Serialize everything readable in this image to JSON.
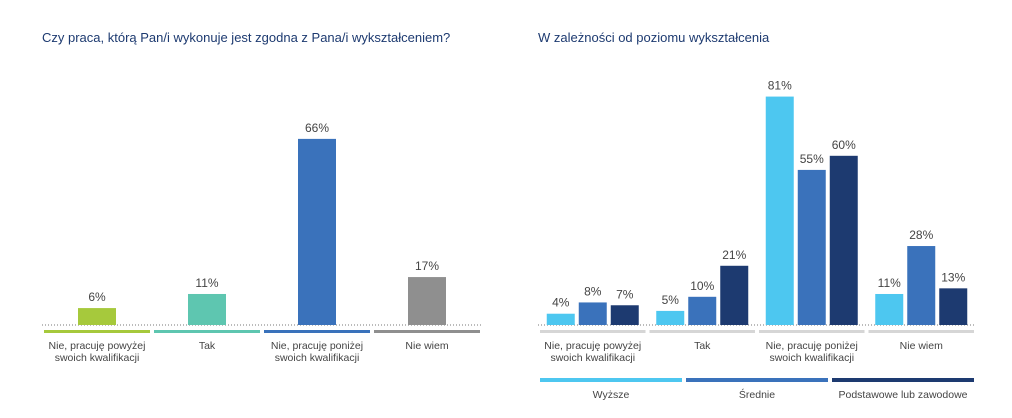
{
  "chart_data": [
    {
      "type": "bar",
      "title": "Czy praca, którą Pan/i wykonuje jest zgodna z Pana/i wykształceniem?",
      "categories": [
        "Nie, pracuję powyżej swoich kwalifikacji",
        "Tak",
        "Nie, pracuję poniżej swoich kwalifikacji",
        "Nie wiem"
      ],
      "values": [
        6,
        11,
        66,
        17
      ],
      "value_labels": [
        "6%",
        "11%",
        "66%",
        "17%"
      ],
      "colors": [
        "#a6c93c",
        "#5ec6b0",
        "#3a72bb",
        "#8f8f8f"
      ]
    },
    {
      "type": "grouped_bar",
      "title": "W zależności od poziomu wykształcenia",
      "categories": [
        "Nie, pracuję powyżej swoich kwalifikacji",
        "Tak",
        "Nie, pracuję poniżej swoich kwalifikacji",
        "Nie wiem"
      ],
      "series": [
        {
          "name": "Wyższe",
          "color": "#4dc7f0",
          "values": [
            4,
            5,
            81,
            11
          ],
          "value_labels": [
            "4%",
            "5%",
            "81%",
            "11%"
          ]
        },
        {
          "name": "Średnie",
          "color": "#3a72bb",
          "values": [
            8,
            10,
            55,
            28
          ],
          "value_labels": [
            "8%",
            "10%",
            "55%",
            "28%"
          ]
        },
        {
          "name": "Podstawowe lub zawodowe",
          "color": "#1d3a70",
          "values": [
            7,
            21,
            60,
            13
          ],
          "value_labels": [
            "7%",
            "21%",
            "60%",
            "13%"
          ]
        }
      ]
    }
  ]
}
